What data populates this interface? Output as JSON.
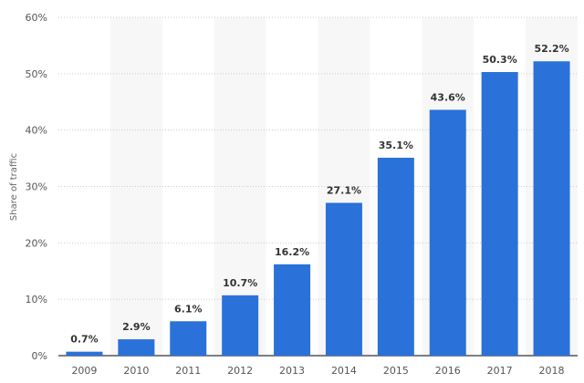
{
  "chart_data": {
    "type": "bar",
    "title": "",
    "xlabel": "",
    "ylabel": "Share of traffic",
    "categories": [
      "2009",
      "2010",
      "2011",
      "2012",
      "2013",
      "2014",
      "2015",
      "2016",
      "2017",
      "2018"
    ],
    "values": [
      0.7,
      2.9,
      6.1,
      10.7,
      16.2,
      27.1,
      35.1,
      43.6,
      50.3,
      52.2
    ],
    "data_labels": [
      "0.7%",
      "2.9%",
      "6.1%",
      "10.7%",
      "16.2%",
      "27.1%",
      "35.1%",
      "43.6%",
      "50.3%",
      "52.2%"
    ],
    "ylim": [
      0,
      60
    ],
    "yticks": [
      0,
      10,
      20,
      30,
      40,
      50,
      60
    ],
    "ytick_labels": [
      "0%",
      "10%",
      "20%",
      "30%",
      "40%",
      "50%",
      "60%"
    ],
    "grid": true,
    "colors": {
      "bar": "#2a72d9",
      "band": "#f7f7f7",
      "grid": "#cccccc",
      "axis": "#333333"
    }
  }
}
